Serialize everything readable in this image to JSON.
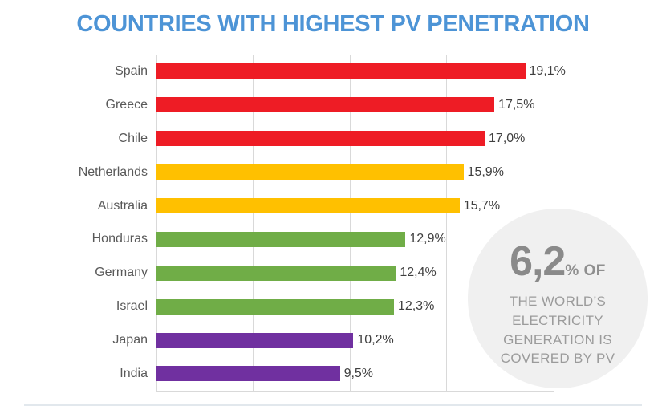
{
  "title": "COUNTRIES WITH HIGHEST PV PENETRATION",
  "colors": {
    "title_blue": "#4D94D6",
    "red": "#EE1C25",
    "yellow": "#FFC000",
    "green": "#70AD47",
    "purple": "#7030A0",
    "badge_background": "#F0F0F0",
    "badge_text": "#8A8A8A",
    "gridline": "#D9D9D9"
  },
  "chart_data": {
    "type": "bar",
    "orientation": "horizontal",
    "title": "COUNTRIES WITH HIGHEST PV PENETRATION",
    "xlabel": "",
    "ylabel": "",
    "xlim": [
      0,
      20
    ],
    "gridline_step": 5,
    "gridlines": [
      0,
      5,
      10,
      15
    ],
    "grid": "vertical-only",
    "legend": "none",
    "categories": [
      "Spain",
      "Greece",
      "Chile",
      "Netherlands",
      "Australia",
      "Honduras",
      "Germany",
      "Israel",
      "Japan",
      "India"
    ],
    "values": [
      19.1,
      17.5,
      17.0,
      15.9,
      15.7,
      12.9,
      12.4,
      12.3,
      10.2,
      9.5
    ],
    "value_labels": [
      "19,1%",
      "17,5%",
      "17,0%",
      "15,9%",
      "15,7%",
      "12,9%",
      "12,4%",
      "12,3%",
      "10,2%",
      "9,5%"
    ],
    "bar_colors": [
      "#EE1C25",
      "#EE1C25",
      "#EE1C25",
      "#FFC000",
      "#FFC000",
      "#70AD47",
      "#70AD47",
      "#70AD47",
      "#7030A0",
      "#7030A0"
    ]
  },
  "badge": {
    "big_value": "6,2",
    "suffix": "% OF",
    "lines": [
      "THE WORLD’S",
      "ELECTRICITY",
      "GENERATION IS",
      "COVERED BY PV"
    ]
  }
}
